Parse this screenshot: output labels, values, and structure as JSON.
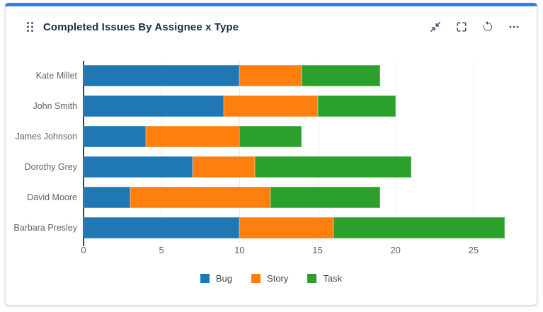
{
  "header": {
    "title": "Completed Issues By Assignee x Type",
    "icons": [
      "drag-handle-icon",
      "collapse-icon",
      "fullscreen-icon",
      "refresh-icon",
      "ellipsis-icon"
    ]
  },
  "chart_data": {
    "type": "bar",
    "orientation": "horizontal",
    "stacked": true,
    "title": "Completed Issues By Assignee x Type",
    "categories": [
      "Kate Millet",
      "John Smith",
      "James Johnson",
      "Dorothy Grey",
      "David Moore",
      "Barbara Presley"
    ],
    "series": [
      {
        "name": "Bug",
        "color": "#1f77b4",
        "values": [
          10,
          9,
          4,
          7,
          3,
          10
        ]
      },
      {
        "name": "Story",
        "color": "#ff7f0e",
        "values": [
          4,
          6,
          6,
          4,
          9,
          6
        ]
      },
      {
        "name": "Task",
        "color": "#2ca02c",
        "values": [
          5,
          5,
          4,
          10,
          7,
          11
        ]
      }
    ],
    "totals": [
      19,
      20,
      14,
      21,
      19,
      27
    ],
    "xticks": [
      0,
      5,
      10,
      15,
      20,
      25
    ],
    "xlim": [
      0,
      28.5
    ],
    "grid": true,
    "legend_position": "bottom"
  },
  "colors": {
    "accent": "#2e7ef7",
    "bug": "#1f77b4",
    "story": "#ff7f0e",
    "task": "#2ca02c",
    "axis_line": "#3a3f47",
    "grid_line": "#e9eaec",
    "label_text": "#5a6472"
  }
}
